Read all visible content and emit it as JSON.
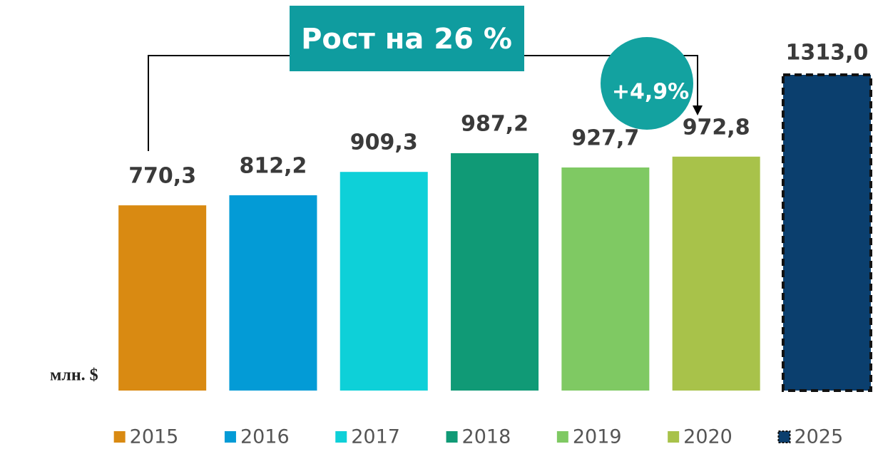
{
  "chart_data": {
    "type": "bar",
    "categories": [
      "2015",
      "2016",
      "2017",
      "2018",
      "2019",
      "2020",
      "2025"
    ],
    "values": [
      770.3,
      812.2,
      909.3,
      987.2,
      927.7,
      972.8,
      1313.0
    ],
    "value_labels": [
      "770,3",
      "812,2",
      "909,3",
      "987,2",
      "927,7",
      "972,8",
      "1313,0"
    ],
    "colors": [
      "#d98a12",
      "#039bd6",
      "#0ed0d8",
      "#109a76",
      "#7fc963",
      "#a8c24a",
      "#0b3f6e"
    ],
    "border_styles": [
      "solid",
      "solid",
      "solid",
      "solid",
      "solid",
      "solid",
      "dashed"
    ],
    "y_label": "млн. $",
    "annotations": [
      "Рост на 26 %",
      "+4,9%"
    ]
  }
}
